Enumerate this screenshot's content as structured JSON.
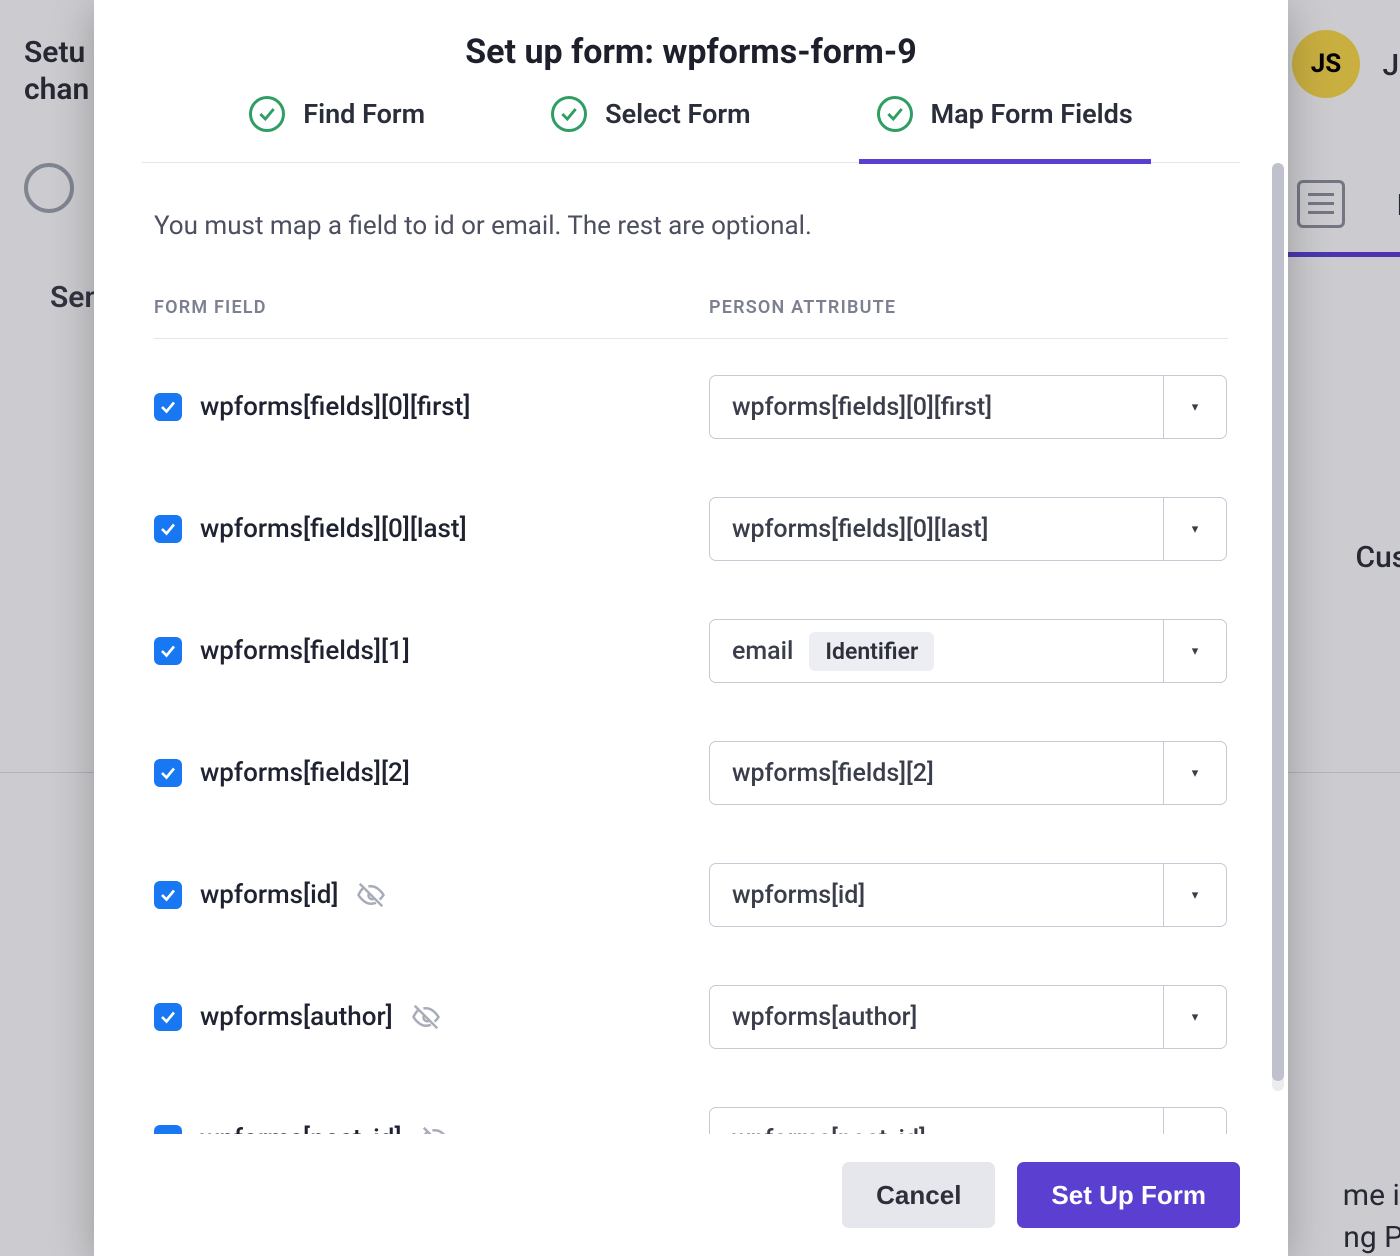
{
  "colors": {
    "accent": "#5b3fd1",
    "check_green": "#2f9e63",
    "checkbox_blue": "#1877f2",
    "border": "#c7cad4",
    "text": "#1f2333",
    "muted": "#7c8091",
    "badge_bg": "#eceef3",
    "btn_secondary_bg": "#e6e7ec"
  },
  "backdrop": {
    "setup_line1": "Setu",
    "setup_line2": "chan",
    "send": "Senc",
    "js_badge": "JS",
    "jav": "Jav",
    "fo": "Fo",
    "custom": "Custom",
    "impo": "me impo",
    "peopl": "ng Peopl"
  },
  "modal": {
    "title": "Set up form: wpforms-form-9",
    "steps": [
      {
        "label": "Find Form",
        "done": true,
        "active": false
      },
      {
        "label": "Select Form",
        "done": true,
        "active": false
      },
      {
        "label": "Map Form Fields",
        "done": true,
        "active": true
      }
    ],
    "hint": "You must map a field to id or email. The rest are optional.",
    "columns": {
      "left": "FORM FIELD",
      "right": "PERSON ATTRIBUTE"
    },
    "rows": [
      {
        "checked": true,
        "field": "wpforms[fields][0][first]",
        "hidden": false,
        "value": "wpforms[fields][0][first]",
        "badge": null
      },
      {
        "checked": true,
        "field": "wpforms[fields][0][last]",
        "hidden": false,
        "value": "wpforms[fields][0][last]",
        "badge": null
      },
      {
        "checked": true,
        "field": "wpforms[fields][1]",
        "hidden": false,
        "value": "email",
        "badge": "Identifier"
      },
      {
        "checked": true,
        "field": "wpforms[fields][2]",
        "hidden": false,
        "value": "wpforms[fields][2]",
        "badge": null
      },
      {
        "checked": true,
        "field": "wpforms[id]",
        "hidden": true,
        "value": "wpforms[id]",
        "badge": null
      },
      {
        "checked": true,
        "field": "wpforms[author]",
        "hidden": true,
        "value": "wpforms[author]",
        "badge": null
      },
      {
        "checked": true,
        "field": "wpforms[post_id]",
        "hidden": true,
        "value": "wpforms[post_id]",
        "badge": null
      }
    ],
    "buttons": {
      "cancel": "Cancel",
      "submit": "Set Up Form"
    }
  }
}
